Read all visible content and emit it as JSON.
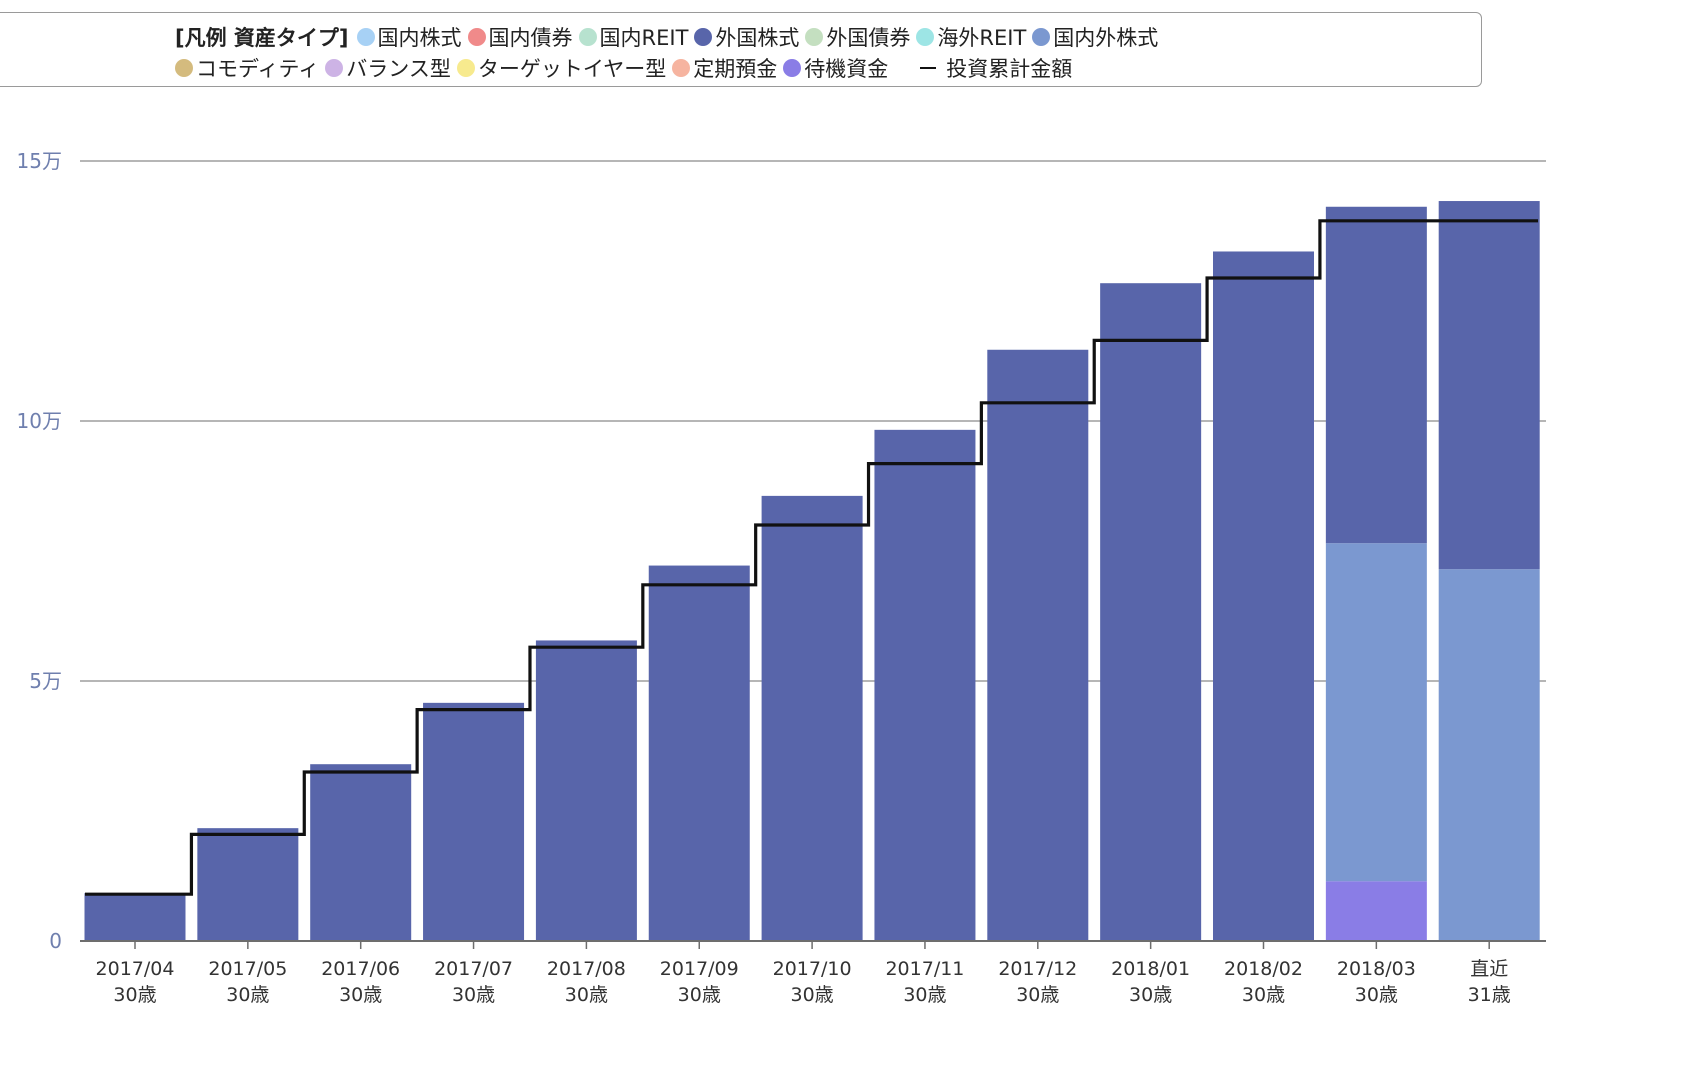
{
  "legend": {
    "title": "[凡例 資産タイプ]",
    "items": [
      {
        "label": "国内株式",
        "color": "#a7d1f5"
      },
      {
        "label": "国内債券",
        "color": "#f08a8a"
      },
      {
        "label": "国内REIT",
        "color": "#b7e2cf"
      },
      {
        "label": "外国株式",
        "color": "#5865aa"
      },
      {
        "label": "外国債券",
        "color": "#c4dfc0"
      },
      {
        "label": "海外REIT",
        "color": "#9de5e5"
      },
      {
        "label": "国内外株式",
        "color": "#7b98d0"
      },
      {
        "label": "コモディティ",
        "color": "#d4bb7e"
      },
      {
        "label": "バランス型",
        "color": "#cdb3e5"
      },
      {
        "label": "ターゲットイヤー型",
        "color": "#f7ea8e"
      },
      {
        "label": "定期預金",
        "color": "#f6b4a0"
      },
      {
        "label": "待機資金",
        "color": "#8a7de6"
      }
    ],
    "line_label": "投資累計金額"
  },
  "chart_data": {
    "type": "bar",
    "stacked": true,
    "categories": [
      "2017/04",
      "2017/05",
      "2017/06",
      "2017/07",
      "2017/08",
      "2017/09",
      "2017/10",
      "2017/11",
      "2017/12",
      "2018/01",
      "2018/02",
      "2018/03",
      "直近"
    ],
    "ages": [
      "30歳",
      "30歳",
      "30歳",
      "30歳",
      "30歳",
      "30歳",
      "30歳",
      "30歳",
      "30歳",
      "30歳",
      "30歳",
      "30歳",
      "31歳"
    ],
    "series": [
      {
        "name": "待機資金",
        "color": "#8a7de6",
        "values": [
          0,
          0,
          0,
          0,
          0,
          0,
          0,
          0,
          0,
          0,
          0,
          11500,
          0
        ]
      },
      {
        "name": "国内外株式",
        "color": "#7b98d0",
        "values": [
          0,
          0,
          0,
          0,
          0,
          0,
          0,
          0,
          0,
          0,
          0,
          65000,
          71500
        ]
      },
      {
        "name": "外国株式",
        "color": "#5865aa",
        "values": [
          9200,
          21700,
          34000,
          45800,
          57800,
          72200,
          85600,
          98300,
          113700,
          126500,
          132600,
          64700,
          70800
        ]
      }
    ],
    "cumulative_line": {
      "name": "投資累計金額",
      "values": [
        9000,
        20500,
        32500,
        44500,
        56500,
        68500,
        80000,
        91800,
        103500,
        115500,
        127500,
        138500,
        138500
      ]
    },
    "yticks": [
      0,
      50000,
      100000,
      150000
    ],
    "ytick_labels": [
      "0",
      "5万",
      "10万",
      "15万"
    ],
    "ylim": [
      0,
      150000
    ],
    "grid": true
  }
}
